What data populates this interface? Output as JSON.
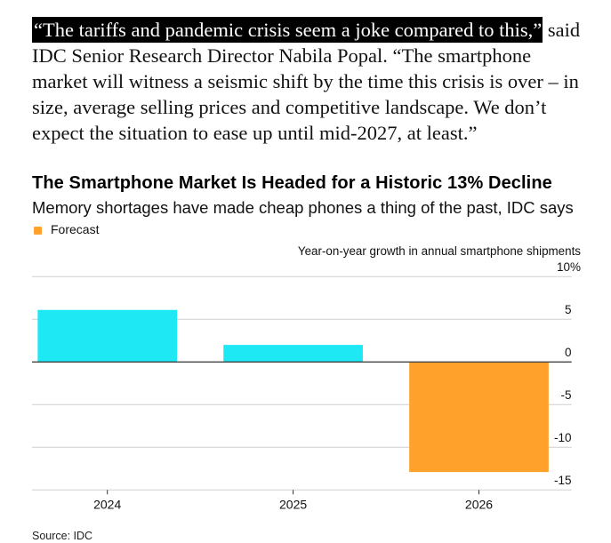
{
  "article": {
    "highlighted_quote": "“The tariffs and pandemic crisis seem a joke compared to this,”",
    "lines": [
      " said",
      "IDC Senior Research Director Nabila Popal. “The smartphone",
      "market will witness a seismic shift by the time this crisis is over – in",
      "size, average selling prices and competitive landscape. We don’t",
      "expect the situation to ease up until mid-2027, at least.”"
    ]
  },
  "chart_data": {
    "type": "bar",
    "title": "The Smartphone Market Is Headed for a Historic 13% Decline",
    "subtitle": "Memory shortages have made cheap phones a thing of the past, IDC says",
    "xlabel": "",
    "ylabel": "Year-on-year growth in annual smartphone shipments",
    "categories": [
      "2024",
      "2025",
      "2026"
    ],
    "series": [
      {
        "name": "Year-on-year growth in annual smartphone shipments (%)",
        "values": [
          6.1,
          2.0,
          -12.9
        ]
      }
    ],
    "forecast": [
      false,
      false,
      true
    ],
    "colors": {
      "actual": "#1ee8f4",
      "forecast": "#ffa12b"
    },
    "ylim": [
      -15,
      10
    ],
    "yticks": [
      10,
      5,
      0,
      -5,
      -10,
      -15
    ],
    "ytick_labels": [
      "10%",
      "5",
      "0",
      "-5",
      "-10",
      "-15"
    ],
    "y_axis_side": "right",
    "grid": true,
    "legend": {
      "position": "top-left",
      "entries": [
        {
          "label": "Forecast",
          "color": "#ffa12b"
        }
      ]
    },
    "source": "Source: IDC"
  }
}
